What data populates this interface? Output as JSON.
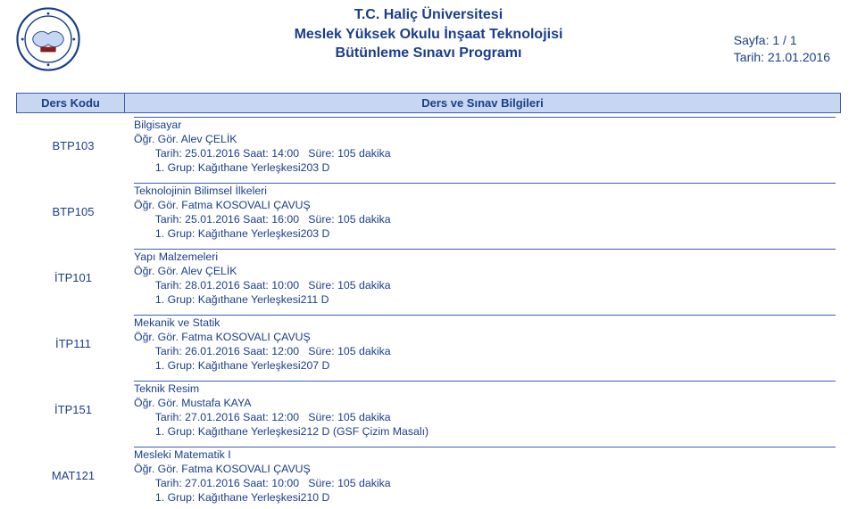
{
  "logo": {
    "outer_ring": "#1a3e8b",
    "inner_fill": "#ffffff",
    "accent": "#8a1c1c"
  },
  "header": {
    "line1": "T.C. Haliç Üniversitesi",
    "line2": "Meslek Yüksek Okulu İnşaat Teknolojisi",
    "line3": "Bütünleme Sınavı Programı"
  },
  "meta": {
    "page_label": "Sayfa: 1 / 1",
    "date_label": "Tarih: 21.01.2016"
  },
  "columns": {
    "code": "Ders Kodu",
    "info": "Ders ve Sınav Bilgileri"
  },
  "rows": [
    {
      "code": "BTP103",
      "lines": [
        "Bilgisayar",
        "Öğr. Gör. Alev ÇELİK",
        "       Tarih: 25.01.2016 Saat: 14:00   Süre: 105 dakika",
        "       1. Grup: Kağıthane Yerleşkesi203 D"
      ]
    },
    {
      "code": "BTP105",
      "lines": [
        "Teknolojinin Bilimsel İlkeleri",
        "Öğr. Gör. Fatma KOSOVALI ÇAVUŞ",
        "       Tarih: 25.01.2016 Saat: 16:00   Süre: 105 dakika",
        "       1. Grup: Kağıthane Yerleşkesi203 D"
      ]
    },
    {
      "code": "İTP101",
      "lines": [
        "Yapı Malzemeleri",
        "Öğr. Gör. Alev ÇELİK",
        "       Tarih: 28.01.2016 Saat: 10:00   Süre: 105 dakika",
        "       1. Grup: Kağıthane Yerleşkesi211 D"
      ]
    },
    {
      "code": "İTP111",
      "lines": [
        "Mekanik ve Statik",
        "Öğr. Gör. Fatma KOSOVALI ÇAVUŞ",
        "       Tarih: 26.01.2016 Saat: 12:00   Süre: 105 dakika",
        "       1. Grup: Kağıthane Yerleşkesi207 D"
      ]
    },
    {
      "code": "İTP151",
      "lines": [
        "Teknik Resim",
        "Öğr. Gör. Mustafa KAYA",
        "       Tarih: 27.01.2016 Saat: 12:00   Süre: 105 dakika",
        "       1. Grup: Kağıthane Yerleşkesi212 D (GSF Çizim Masalı)"
      ]
    },
    {
      "code": "MAT121",
      "lines": [
        "Mesleki Matematik I",
        "Öğr. Gör. Fatma KOSOVALI ÇAVUŞ",
        "       Tarih: 27.01.2016 Saat: 10:00   Süre: 105 dakika",
        "       1. Grup: Kağıthane Yerleşkesi210 D"
      ]
    }
  ]
}
